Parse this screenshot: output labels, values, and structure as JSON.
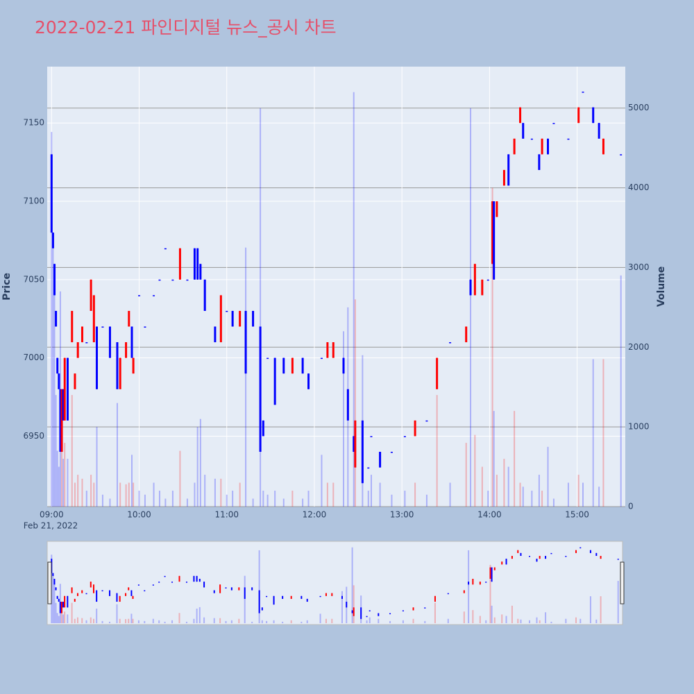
{
  "chart_data": {
    "type": "candlestick",
    "title": "2022-02-21 파인디지털 뉴스_공시 차트",
    "y_label": "Price",
    "y2_label": "Volume",
    "x_date_label": "Feb 21, 2022",
    "increasing_color": "#ff0000",
    "decreasing_color": "#0000ff",
    "xlim": [
      "2022-02-21 08:57",
      "2022-02-21 15:33"
    ],
    "xticks": [
      {
        "value": "2022-02-21 09:00",
        "label": "09:00"
      },
      {
        "value": "2022-02-21 10:00",
        "label": "10:00"
      },
      {
        "value": "2022-02-21 11:00",
        "label": "11:00"
      },
      {
        "value": "2022-02-21 12:00",
        "label": "12:00"
      },
      {
        "value": "2022-02-21 13:00",
        "label": "13:00"
      },
      {
        "value": "2022-02-21 14:00",
        "label": "14:00"
      },
      {
        "value": "2022-02-21 15:00",
        "label": "15:00"
      }
    ],
    "ylim": [
      6905,
      7186
    ],
    "yticks": [
      6950,
      7000,
      7050,
      7100,
      7150
    ],
    "y2lim": [
      0,
      5520
    ],
    "y2ticks": [
      0,
      1000,
      2000,
      3000,
      4000,
      5000
    ],
    "grid": true,
    "rangeslider": true,
    "x": [
      "2022-02-21 09:00",
      "2022-02-21 09:01",
      "2022-02-21 09:02",
      "2022-02-21 09:03",
      "2022-02-21 09:04",
      "2022-02-21 09:05",
      "2022-02-21 09:06",
      "2022-02-21 09:07",
      "2022-02-21 09:08",
      "2022-02-21 09:09",
      "2022-02-21 09:11",
      "2022-02-21 09:14",
      "2022-02-21 09:16",
      "2022-02-21 09:18",
      "2022-02-21 09:21",
      "2022-02-21 09:24",
      "2022-02-21 09:27",
      "2022-02-21 09:29",
      "2022-02-21 09:31",
      "2022-02-21 09:35",
      "2022-02-21 09:40",
      "2022-02-21 09:45",
      "2022-02-21 09:47",
      "2022-02-21 09:51",
      "2022-02-21 09:53",
      "2022-02-21 09:55",
      "2022-02-21 09:56",
      "2022-02-21 10:00",
      "2022-02-21 10:04",
      "2022-02-21 10:10",
      "2022-02-21 10:14",
      "2022-02-21 10:18",
      "2022-02-21 10:23",
      "2022-02-21 10:28",
      "2022-02-21 10:33",
      "2022-02-21 10:38",
      "2022-02-21 10:40",
      "2022-02-21 10:42",
      "2022-02-21 10:45",
      "2022-02-21 10:52",
      "2022-02-21 10:56",
      "2022-02-21 11:00",
      "2022-02-21 11:04",
      "2022-02-21 11:09",
      "2022-02-21 11:13",
      "2022-02-21 11:18",
      "2022-02-21 11:23",
      "2022-02-21 11:25",
      "2022-02-21 11:28",
      "2022-02-21 11:33",
      "2022-02-21 11:39",
      "2022-02-21 11:45",
      "2022-02-21 11:52",
      "2022-02-21 11:56",
      "2022-02-21 12:05",
      "2022-02-21 12:09",
      "2022-02-21 12:13",
      "2022-02-21 12:20",
      "2022-02-21 12:23",
      "2022-02-21 12:27",
      "2022-02-21 12:28",
      "2022-02-21 12:33",
      "2022-02-21 12:37",
      "2022-02-21 12:39",
      "2022-02-21 12:45",
      "2022-02-21 12:53",
      "2022-02-21 13:02",
      "2022-02-21 13:09",
      "2022-02-21 13:17",
      "2022-02-21 13:24",
      "2022-02-21 13:33",
      "2022-02-21 13:44",
      "2022-02-21 13:47",
      "2022-02-21 13:50",
      "2022-02-21 13:55",
      "2022-02-21 13:59",
      "2022-02-21 14:02",
      "2022-02-21 14:03",
      "2022-02-21 14:05",
      "2022-02-21 14:10",
      "2022-02-21 14:13",
      "2022-02-21 14:17",
      "2022-02-21 14:21",
      "2022-02-21 14:23",
      "2022-02-21 14:29",
      "2022-02-21 14:34",
      "2022-02-21 14:36",
      "2022-02-21 14:40",
      "2022-02-21 14:44",
      "2022-02-21 14:54",
      "2022-02-21 15:01",
      "2022-02-21 15:04",
      "2022-02-21 15:11",
      "2022-02-21 15:15",
      "2022-02-21 15:18",
      "2022-02-21 15:30"
    ],
    "open": [
      7130,
      7080,
      7060,
      7030,
      7000,
      6990,
      6980,
      6940,
      6980,
      6960,
      7000,
      7010,
      6980,
      7000,
      7010,
      7010,
      7030,
      7010,
      7020,
      7020,
      7020,
      7010,
      6980,
      7000,
      7020,
      7020,
      6990,
      7040,
      7020,
      7040,
      7050,
      7070,
      7050,
      7050,
      7050,
      7070,
      7070,
      7060,
      7050,
      7020,
      7010,
      7030,
      7030,
      7020,
      7030,
      7030,
      7020,
      6960,
      7000,
      7000,
      7000,
      6990,
      7000,
      6990,
      7000,
      7000,
      7000,
      7000,
      6980,
      6950,
      6930,
      6960,
      6930,
      6950,
      6940,
      6940,
      6950,
      6950,
      6960,
      6980,
      7010,
      7010,
      7050,
      7040,
      7040,
      7050,
      7060,
      7100,
      7090,
      7110,
      7130,
      7130,
      7150,
      7150,
      7140,
      7130,
      7130,
      7140,
      7150,
      7140,
      7150,
      7170,
      7160,
      7150,
      7130,
      7130
    ],
    "high": [
      7130,
      7080,
      7060,
      7030,
      7000,
      6990,
      6980,
      6980,
      6980,
      7000,
      7000,
      7030,
      6990,
      7010,
      7020,
      7010,
      7050,
      7040,
      7020,
      7020,
      7020,
      7010,
      7000,
      7010,
      7030,
      7020,
      7000,
      7040,
      7020,
      7040,
      7050,
      7070,
      7050,
      7070,
      7050,
      7070,
      7070,
      7060,
      7050,
      7020,
      7040,
      7030,
      7030,
      7030,
      7030,
      7030,
      7020,
      6960,
      7000,
      7000,
      7000,
      7000,
      7000,
      6990,
      7000,
      7010,
      7010,
      7000,
      6980,
      6950,
      6960,
      6960,
      6930,
      6950,
      6940,
      6940,
      6950,
      6960,
      6960,
      7000,
      7010,
      7020,
      7050,
      7060,
      7050,
      7050,
      7100,
      7100,
      7100,
      7120,
      7130,
      7140,
      7160,
      7150,
      7140,
      7130,
      7140,
      7140,
      7150,
      7140,
      7160,
      7170,
      7160,
      7150,
      7140,
      7130
    ],
    "low": [
      7080,
      7070,
      7040,
      7020,
      6990,
      6980,
      6940,
      6940,
      6960,
      6960,
      6960,
      7010,
      6980,
      7000,
      7010,
      7010,
      7030,
      7010,
      6980,
      7020,
      7000,
      6980,
      6980,
      7000,
      7020,
      7000,
      6990,
      7040,
      7020,
      7040,
      7050,
      7070,
      7050,
      7050,
      7050,
      7050,
      7050,
      7050,
      7030,
      7010,
      7010,
      7030,
      7020,
      7020,
      6990,
      7020,
      6940,
      6950,
      7000,
      6970,
      6990,
      6990,
      6990,
      6980,
      7000,
      7000,
      7000,
      6990,
      6960,
      6940,
      6930,
      6920,
      6930,
      6950,
      6930,
      6940,
      6950,
      6950,
      6960,
      6980,
      7010,
      7010,
      7040,
      7040,
      7040,
      7050,
      7060,
      7050,
      7090,
      7110,
      7110,
      7130,
      7150,
      7140,
      7140,
      7120,
      7130,
      7130,
      7150,
      7140,
      7150,
      7170,
      7150,
      7140,
      7130,
      7130
    ],
    "close": [
      7080,
      7070,
      7040,
      7020,
      6990,
      6980,
      6940,
      6980,
      6960,
      7000,
      6960,
      7030,
      6990,
      7010,
      7020,
      7010,
      7050,
      7040,
      6980,
      7020,
      7000,
      6980,
      7000,
      7010,
      7030,
      7000,
      7000,
      7040,
      7020,
      7040,
      7050,
      7070,
      7050,
      7070,
      7050,
      7050,
      7050,
      7050,
      7030,
      7010,
      7040,
      7030,
      7020,
      7030,
      6990,
      7020,
      6940,
      6950,
      7000,
      6970,
      6990,
      7000,
      6990,
      6980,
      7000,
      7010,
      7010,
      6990,
      6960,
      6940,
      6960,
      6920,
      6930,
      6950,
      6930,
      6940,
      6950,
      6960,
      6960,
      7000,
      7010,
      7020,
      7040,
      7060,
      7050,
      7050,
      7100,
      7050,
      7100,
      7120,
      7110,
      7140,
      7160,
      7140,
      7140,
      7120,
      7140,
      7130,
      7150,
      7140,
      7160,
      7170,
      7150,
      7140,
      7140,
      7130
    ],
    "volume": [
      4700,
      3300,
      2900,
      1400,
      700,
      500,
      2700,
      900,
      600,
      800,
      600,
      1400,
      300,
      400,
      350,
      200,
      400,
      300,
      1000,
      150,
      100,
      1300,
      300,
      280,
      300,
      650,
      300,
      200,
      150,
      300,
      200,
      100,
      200,
      700,
      100,
      300,
      1000,
      1100,
      400,
      350,
      350,
      150,
      200,
      300,
      3250,
      100,
      5000,
      200,
      150,
      200,
      100,
      200,
      100,
      200,
      650,
      300,
      300,
      2200,
      2500,
      5200,
      2600,
      1900,
      200,
      400,
      300,
      150,
      200,
      300,
      150,
      1400,
      300,
      800,
      5000,
      900,
      500,
      200,
      4000,
      1200,
      400,
      600,
      500,
      1200,
      300,
      250,
      200,
      400,
      200,
      750,
      100,
      300,
      400,
      300,
      1850,
      250,
      1850,
      2900
    ]
  }
}
